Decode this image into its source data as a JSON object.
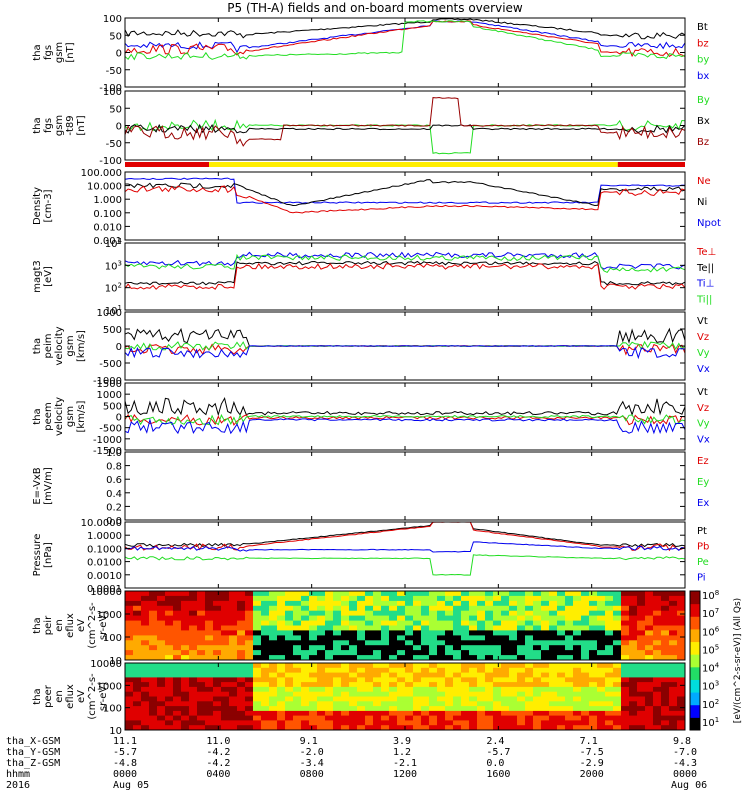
{
  "title": "P5 (TH-A) fields and on-board moments overview",
  "colors": {
    "black": "#000000",
    "red": "#e00000",
    "green": "#22dd22",
    "blue": "#0000ee",
    "darkred": "#990000",
    "yellow": "#ffee00"
  },
  "chart_data": [
    {
      "type": "line",
      "ylabel": [
        "tha",
        "fgs",
        "gsm",
        "[nT]"
      ],
      "ylim": [
        -100,
        100
      ],
      "yticks": [
        "100",
        "50",
        "0",
        "-50",
        "-100"
      ],
      "legend": [
        {
          "name": "Bt",
          "color": "black"
        },
        {
          "name": "bz",
          "color": "red"
        },
        {
          "name": "by",
          "color": "green"
        },
        {
          "name": "bx",
          "color": "blue"
        }
      ]
    },
    {
      "type": "line",
      "ylabel": [
        "tha",
        "fgs",
        "gsm",
        "-t89",
        "[nT]"
      ],
      "ylim": [
        -125,
        125
      ],
      "yticks": [
        "100",
        "50",
        "0",
        "-50",
        "-100"
      ],
      "legend": [
        {
          "name": "By",
          "color": "green"
        },
        {
          "name": "Bx",
          "color": "black"
        },
        {
          "name": "Bz",
          "color": "darkred"
        }
      ]
    },
    {
      "type": "line",
      "ylabel": [
        "Density",
        "[cm-3]"
      ],
      "log": true,
      "yticks": [
        "100.000",
        "10.000",
        "1.000",
        "0.100",
        "0.010",
        "0.001"
      ],
      "legend": [
        {
          "name": "Ne",
          "color": "red"
        },
        {
          "name": "Ni",
          "color": "black"
        },
        {
          "name": "Npot",
          "color": "blue"
        }
      ]
    },
    {
      "type": "line",
      "ylabel": [
        "magt3",
        "[eV]"
      ],
      "log": true,
      "yticks": [
        "10^4",
        "10^3",
        "10^2",
        "10^1"
      ],
      "legend": [
        {
          "name": "Te⊥",
          "color": "red"
        },
        {
          "name": "Te||",
          "color": "black"
        },
        {
          "name": "Ti⊥",
          "color": "blue"
        },
        {
          "name": "Ti||",
          "color": "green"
        }
      ]
    },
    {
      "type": "line",
      "ylabel": [
        "tha",
        "peim",
        "velocity",
        "gsm",
        "[km/s]"
      ],
      "ylim": [
        -1000,
        1000
      ],
      "yticks": [
        "1000",
        "500",
        "0",
        "-500",
        "-1000"
      ],
      "legend": [
        {
          "name": "Vt",
          "color": "black"
        },
        {
          "name": "Vz",
          "color": "red"
        },
        {
          "name": "Vy",
          "color": "green"
        },
        {
          "name": "Vx",
          "color": "blue"
        }
      ]
    },
    {
      "type": "line",
      "ylabel": [
        "tha",
        "peem",
        "velocity",
        "gsm",
        "[km/s]"
      ],
      "ylim": [
        -1500,
        1500
      ],
      "yticks": [
        "1500",
        "1000",
        "500",
        "0",
        "-500",
        "-1000",
        "-1500"
      ],
      "legend": [
        {
          "name": "Vt",
          "color": "black"
        },
        {
          "name": "Vz",
          "color": "red"
        },
        {
          "name": "Vy",
          "color": "green"
        },
        {
          "name": "Vx",
          "color": "blue"
        }
      ]
    },
    {
      "type": "line",
      "ylabel": [
        "E=-VxB",
        "[mV/m]"
      ],
      "ylim": [
        0,
        1
      ],
      "yticks": [
        "1.0",
        "0.8",
        "0.6",
        "0.4",
        "0.2",
        "0.0"
      ],
      "legend": [
        {
          "name": "Ez",
          "color": "red"
        },
        {
          "name": "Ey",
          "color": "green"
        },
        {
          "name": "Ex",
          "color": "blue"
        }
      ]
    },
    {
      "type": "line",
      "ylabel": [
        "Pressure",
        "[nPa]"
      ],
      "log": true,
      "yticks": [
        "10.0000",
        "1.0000",
        "0.1000",
        "0.0100",
        "0.0010",
        "0.0001"
      ],
      "legend": [
        {
          "name": "Pt",
          "color": "black"
        },
        {
          "name": "Pb",
          "color": "red"
        },
        {
          "name": "Pe",
          "color": "green"
        },
        {
          "name": "Pi",
          "color": "blue"
        }
      ]
    },
    {
      "type": "heatmap",
      "ylabel": [
        "tha",
        "peir",
        "en",
        "eflux",
        "eV",
        "(cm^2-s-",
        "sr-eV)"
      ],
      "yticks": [
        "10000",
        "1000",
        "100",
        "10"
      ]
    },
    {
      "type": "heatmap",
      "ylabel": [
        "tha",
        "peer",
        "en",
        "eflux",
        "eV",
        "(cm^2-s-",
        "sr-eV)"
      ],
      "yticks": [
        "10000",
        "1000",
        "100",
        "10"
      ]
    }
  ],
  "colorbar": {
    "label": "[eV/(cm^2-s-sr-eV)] (All Qs)",
    "ticks": [
      "10^8",
      "10^7",
      "10^6",
      "10^5",
      "10^4",
      "10^3",
      "10^2",
      "10^1"
    ]
  },
  "footer": {
    "rows": [
      {
        "label": "tha_X-GSM",
        "values": [
          "11.1",
          "11.0",
          "9.1",
          "3.9",
          "2.4",
          "7.1",
          "9.8"
        ]
      },
      {
        "label": "tha_Y-GSM",
        "values": [
          "-5.7",
          "-4.2",
          "-2.0",
          "1.2",
          "-5.7",
          "-7.5",
          "-7.0"
        ]
      },
      {
        "label": "tha_Z-GSM",
        "values": [
          "-4.8",
          "-4.2",
          "-3.4",
          "-2.1",
          "0.0",
          "-2.9",
          "-4.3"
        ]
      },
      {
        "label": "hhmm",
        "values": [
          "0000",
          "0400",
          "0800",
          "1200",
          "1600",
          "2000",
          "0000"
        ]
      }
    ],
    "year": "2016",
    "date_start": "Aug 05",
    "date_end": "Aug 06"
  }
}
